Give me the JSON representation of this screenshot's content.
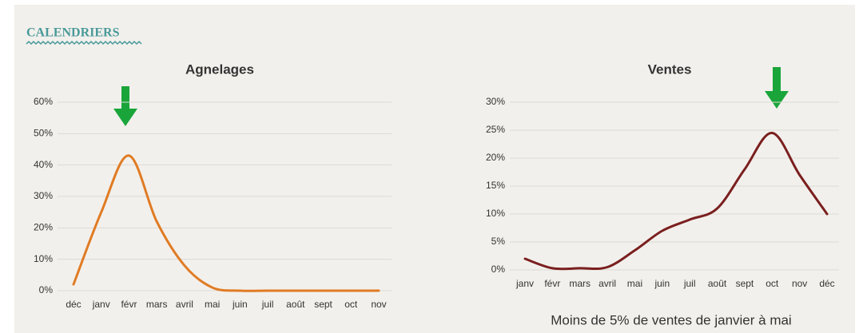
{
  "header": {
    "title": "CALENDRIERS"
  },
  "chart_data": [
    {
      "type": "line",
      "title": "Agnelages",
      "categories": [
        "déc",
        "janv",
        "févr",
        "mars",
        "avril",
        "mai",
        "juin",
        "juil",
        "août",
        "sept",
        "oct",
        "nov"
      ],
      "series": [
        {
          "name": "Agnelages",
          "color": "#e07b24",
          "values": [
            2,
            25,
            43,
            22,
            8,
            1,
            0,
            0,
            0,
            0,
            0,
            0
          ]
        }
      ],
      "ylim": [
        0,
        60
      ],
      "yticks": [
        {
          "value": 0,
          "label": "0%"
        },
        {
          "value": 10,
          "label": "10%"
        },
        {
          "value": 20,
          "label": "20%"
        },
        {
          "value": 30,
          "label": "30%"
        },
        {
          "value": 40,
          "label": "40%"
        },
        {
          "value": 50,
          "label": "50%"
        },
        {
          "value": 60,
          "label": "60%"
        }
      ],
      "grid": true
    },
    {
      "type": "line",
      "title": "Ventes",
      "categories": [
        "janv",
        "févr",
        "mars",
        "avril",
        "mai",
        "juin",
        "juil",
        "août",
        "sept",
        "oct",
        "nov",
        "déc"
      ],
      "series": [
        {
          "name": "Ventes",
          "color": "#7a1f1f",
          "values": [
            2,
            0.3,
            0.3,
            0.5,
            3.5,
            7,
            9,
            11,
            18,
            24.5,
            17,
            10
          ]
        }
      ],
      "ylim": [
        0,
        30
      ],
      "yticks": [
        {
          "value": 0,
          "label": "0%"
        },
        {
          "value": 5,
          "label": "5%"
        },
        {
          "value": 10,
          "label": "10%"
        },
        {
          "value": 15,
          "label": "15%"
        },
        {
          "value": 20,
          "label": "20%"
        },
        {
          "value": 25,
          "label": "25%"
        },
        {
          "value": 30,
          "label": "30%"
        }
      ],
      "grid": true,
      "annotation": "Moins de 5% de ventes de janvier à mai"
    }
  ]
}
